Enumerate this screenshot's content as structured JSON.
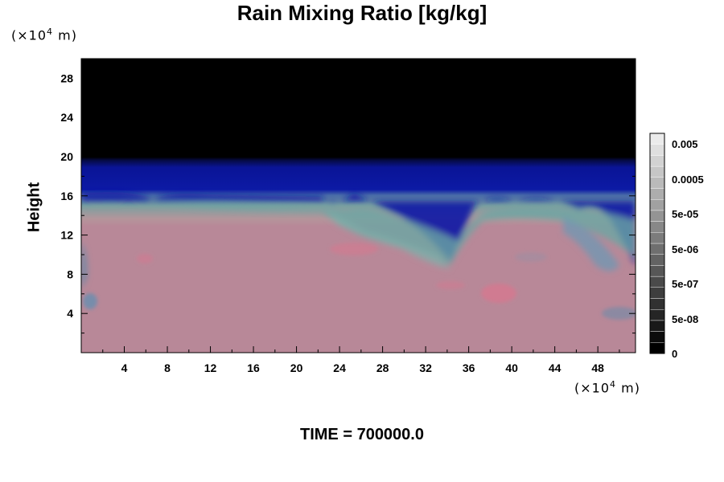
{
  "chart_data": {
    "type": "heatmap",
    "title": "Rain Mixing Ratio [kg/kg]",
    "ylabel": "Height",
    "x_unit": {
      "prefix": "(×10",
      "exp": "4",
      "suffix": " m)"
    },
    "y_unit": {
      "prefix": "(×10",
      "exp": "4",
      "suffix": " m)"
    },
    "xlim": [
      0,
      51.5
    ],
    "ylim": [
      0,
      30
    ],
    "x_ticks": [
      "4",
      "8",
      "12",
      "16",
      "20",
      "24",
      "28",
      "32",
      "36",
      "40",
      "44",
      "48"
    ],
    "y_ticks": [
      "4",
      "8",
      "12",
      "16",
      "20",
      "24",
      "28"
    ],
    "colorbar": {
      "labels": [
        "0.005",
        "0.0005",
        "5e-05",
        "5e-06",
        "5e-07",
        "5e-08",
        "0"
      ]
    },
    "footer": "TIME = 700000.0",
    "colors": {
      "upper": "#000000",
      "band": "#0a1496",
      "lower": "#b88898",
      "teal": "#6aa6a4",
      "pink": "#d6788f"
    }
  }
}
